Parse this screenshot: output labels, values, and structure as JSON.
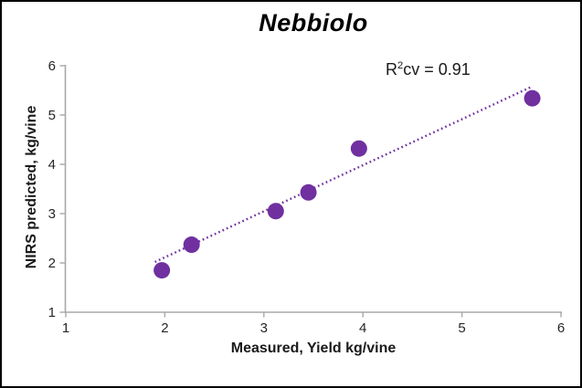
{
  "chart": {
    "title": "Nebbiolo",
    "x_axis_label": "Measured, Yield kg/vine",
    "y_axis_label": "NIRS predicted, kg/vine",
    "annotation": {
      "base": "R",
      "superscript": "2",
      "rest": "cv = 0.91"
    }
  },
  "chart_data": {
    "type": "scatter",
    "title": "Nebbiolo",
    "xlabel": "Measured, Yield kg/vine",
    "ylabel": "NIRS predicted, kg/vine",
    "xlim": [
      1,
      6
    ],
    "ylim": [
      1,
      6
    ],
    "x_ticks": [
      "1",
      "2",
      "3",
      "4",
      "5",
      "6"
    ],
    "y_ticks": [
      "1",
      "2",
      "3",
      "4",
      "5",
      "6"
    ],
    "grid": false,
    "legend": false,
    "annotation": "R2cv = 0.91",
    "series": [
      {
        "name": "NIRS predicted vs measured yield",
        "marker": "circle",
        "color": "#7030A0",
        "points": [
          {
            "x": 1.97,
            "y": 1.85
          },
          {
            "x": 2.27,
            "y": 2.37
          },
          {
            "x": 3.12,
            "y": 3.05
          },
          {
            "x": 3.45,
            "y": 3.43
          },
          {
            "x": 3.96,
            "y": 4.32
          },
          {
            "x": 5.71,
            "y": 5.34
          }
        ]
      }
    ],
    "trendline": {
      "style": "dotted",
      "color": "#7030A0",
      "x1": 1.9,
      "y1": 2.02,
      "x2": 5.7,
      "y2": 5.57
    },
    "colors": {
      "marker": "#7030A0",
      "trendline": "#7030A0",
      "axis_line": "#A8A8A8",
      "tick_text": "#262626",
      "title_text": "#000000"
    }
  }
}
